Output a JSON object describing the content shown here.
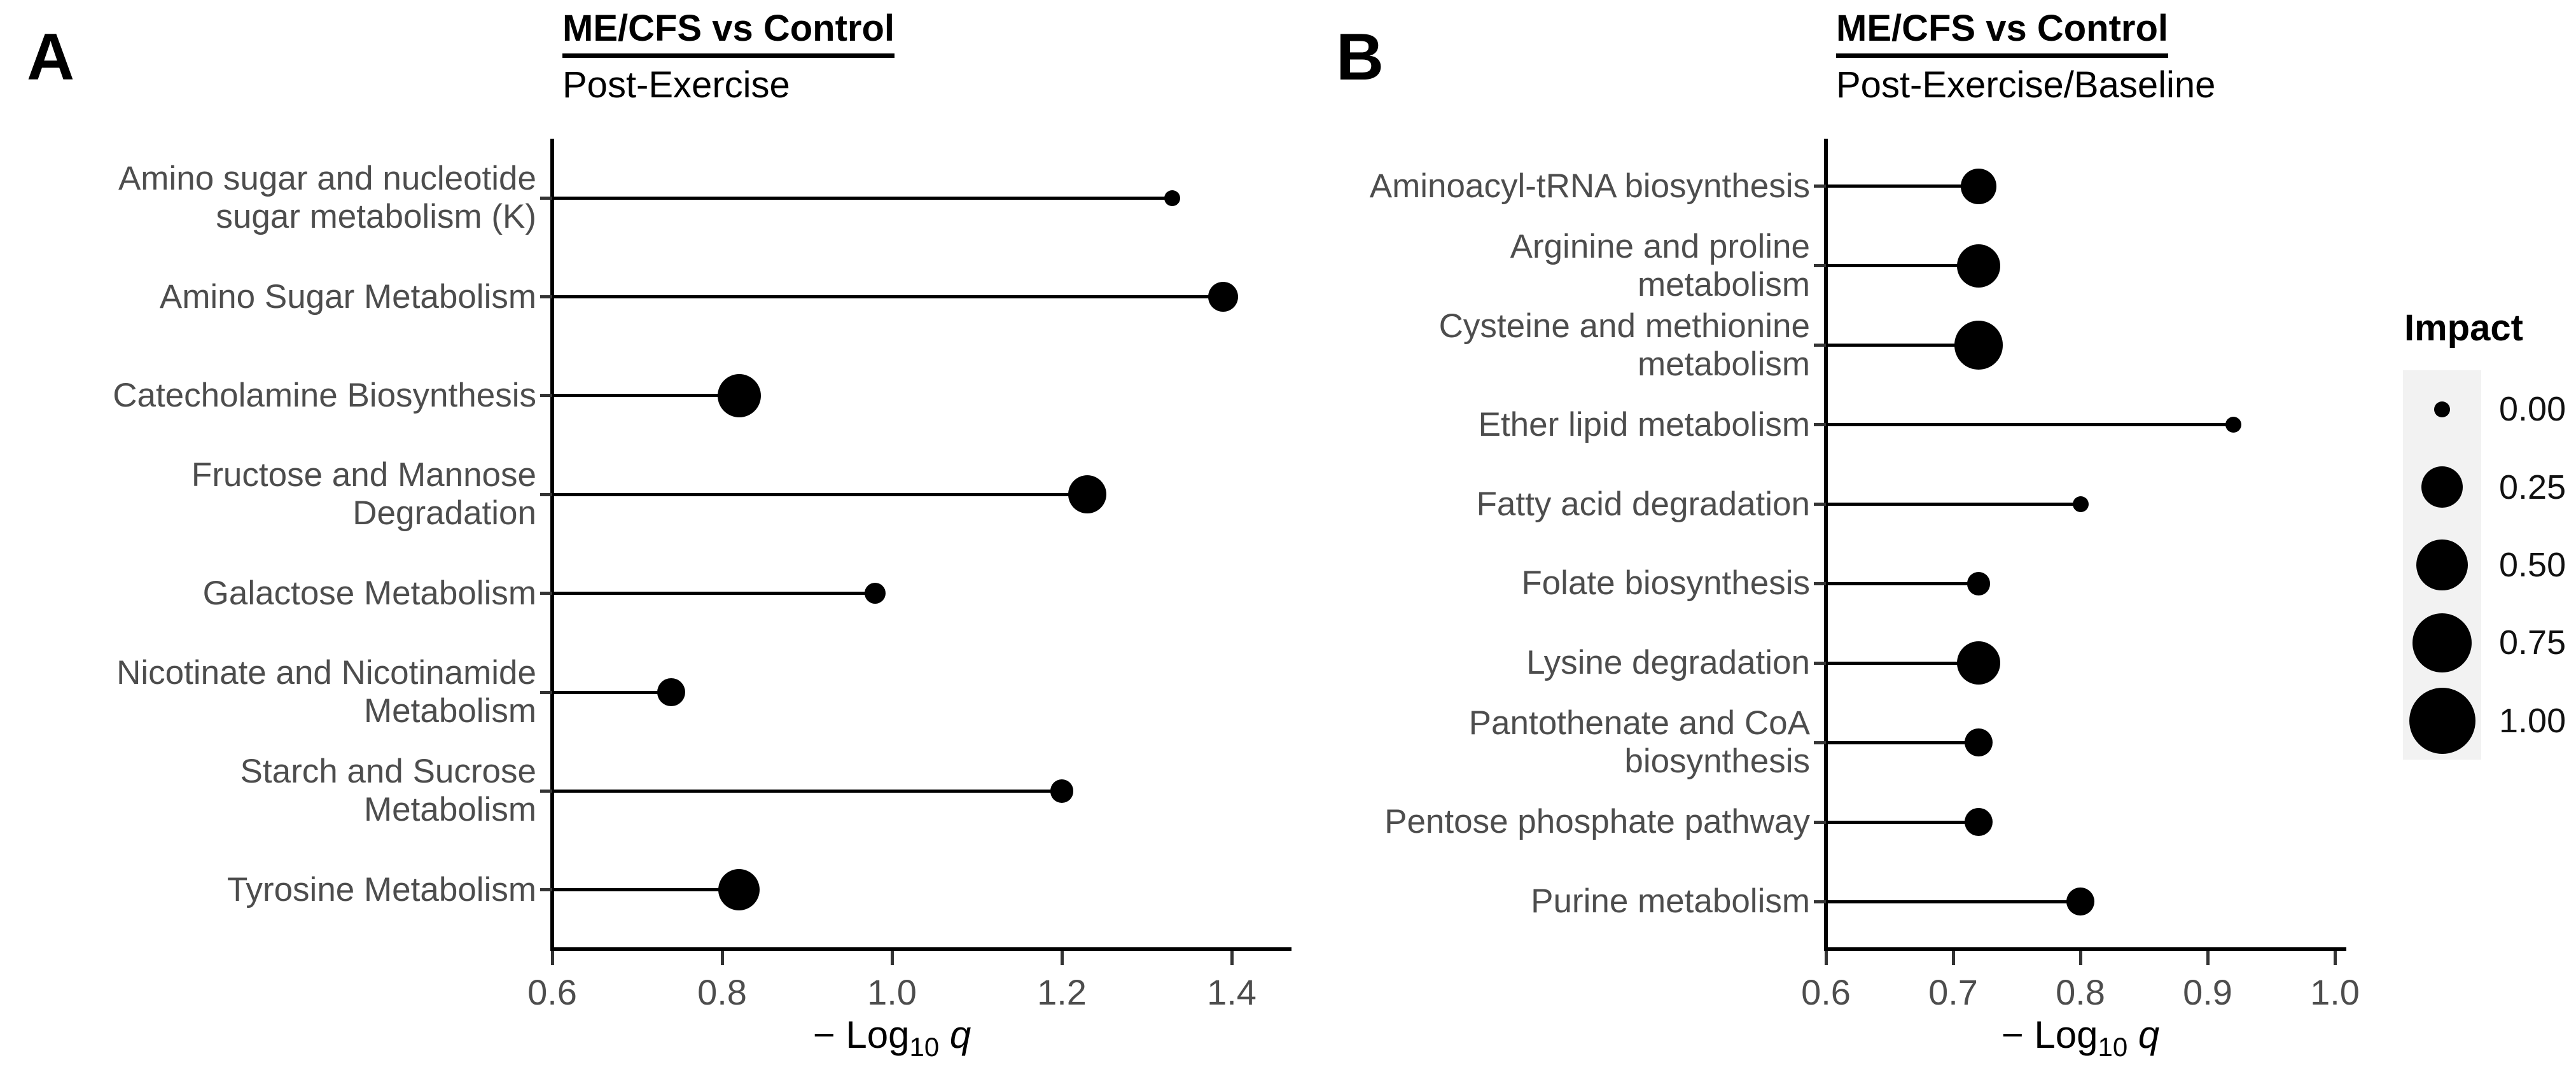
{
  "legend": {
    "title": "Impact",
    "entries": [
      {
        "label": "0.00",
        "impact": 0.0
      },
      {
        "label": "0.25",
        "impact": 0.25
      },
      {
        "label": "0.50",
        "impact": 0.5
      },
      {
        "label": "0.75",
        "impact": 0.75
      },
      {
        "label": "1.00",
        "impact": 1.0
      }
    ],
    "key_background_color": "#f2f2f2",
    "dot_color": "#000000",
    "position": "right"
  },
  "style": {
    "dot_color": "#000000",
    "stem_color": "#000000",
    "axis_color": "#000000",
    "axis_text_color": "#4d4d4d",
    "background": "#ffffff"
  },
  "chart_data": [
    {
      "type": "lollipop",
      "panel": "A",
      "title": "ME/CFS vs Control",
      "subtitle": "Post-Exercise",
      "xlabel": "-Log10 q",
      "xlabel_parts": {
        "pre": "− Log",
        "sub": "10",
        "var": " q"
      },
      "xlim": [
        0.6,
        1.47
      ],
      "xticks": [
        "0.6",
        "0.8",
        "1.0",
        "1.2",
        "1.4"
      ],
      "grid": "off",
      "categories": [
        "Amino sugar and nucleotide sugar metabolism (K)",
        "Amino Sugar Metabolism",
        "Catecholamine Biosynthesis",
        "Fructose and Mannose Degradation",
        "Galactose Metabolism",
        "Nicotinate and Nicotinamide Metabolism",
        "Starch and Sucrose Metabolism",
        "Tyrosine Metabolism"
      ],
      "category_lines": [
        [
          "Amino sugar and nucleotide",
          "sugar metabolism (K)"
        ],
        [
          "Amino Sugar Metabolism"
        ],
        [
          "Catecholamine Biosynthesis"
        ],
        [
          "Fructose and Mannose",
          "Degradation"
        ],
        [
          "Galactose Metabolism"
        ],
        [
          "Nicotinate and Nicotinamide",
          "Metabolism"
        ],
        [
          "Starch and Sucrose Metabolism"
        ],
        [
          "Tyrosine Metabolism"
        ]
      ],
      "series": [
        {
          "name": "-Log10 q",
          "values": [
            1.33,
            1.39,
            0.82,
            1.23,
            0.98,
            0.74,
            1.2,
            0.82
          ]
        },
        {
          "name": "Impact",
          "values": [
            0.0,
            0.08,
            0.3,
            0.2,
            0.01,
            0.06,
            0.02,
            0.26
          ]
        }
      ]
    },
    {
      "type": "lollipop",
      "panel": "B",
      "title": "ME/CFS vs Control",
      "subtitle": "Post-Exercise/Baseline",
      "xlabel": "-Log10 q",
      "xlabel_parts": {
        "pre": "− Log",
        "sub": "10",
        "var": " q"
      },
      "xlim": [
        0.6,
        1.01
      ],
      "xticks": [
        "0.6",
        "0.7",
        "0.8",
        "0.9",
        "1.0"
      ],
      "grid": "off",
      "categories": [
        "Aminoacyl-tRNA biosynthesis",
        "Arginine and proline metabolism",
        "Cysteine and methionine metabolism",
        "Ether lipid metabolism",
        "Fatty acid degradation",
        "Folate biosynthesis",
        "Lysine degradation",
        "Pantothenate and CoA biosynthesis",
        "Pentose phosphate pathway",
        "Purine metabolism"
      ],
      "category_lines": [
        [
          "Aminoacyl-tRNA biosynthesis"
        ],
        [
          "Arginine and proline",
          "metabolism"
        ],
        [
          "Cysteine and methionine",
          "metabolism"
        ],
        [
          "Ether lipid metabolism"
        ],
        [
          "Fatty acid degradation"
        ],
        [
          "Folate biosynthesis"
        ],
        [
          "Lysine degradation"
        ],
        [
          "Pantothenate and CoA",
          "biosynthesis"
        ],
        [
          "Pentose phosphate pathway"
        ],
        [
          "Purine metabolism"
        ]
      ],
      "series": [
        {
          "name": "-Log10 q",
          "values": [
            0.72,
            0.72,
            0.72,
            0.92,
            0.8,
            0.72,
            0.72,
            0.72,
            0.72,
            0.8
          ]
        },
        {
          "name": "Impact",
          "values": [
            0.15,
            0.3,
            0.43,
            0.0,
            0.0,
            0.02,
            0.3,
            0.06,
            0.06,
            0.06
          ]
        }
      ]
    }
  ]
}
